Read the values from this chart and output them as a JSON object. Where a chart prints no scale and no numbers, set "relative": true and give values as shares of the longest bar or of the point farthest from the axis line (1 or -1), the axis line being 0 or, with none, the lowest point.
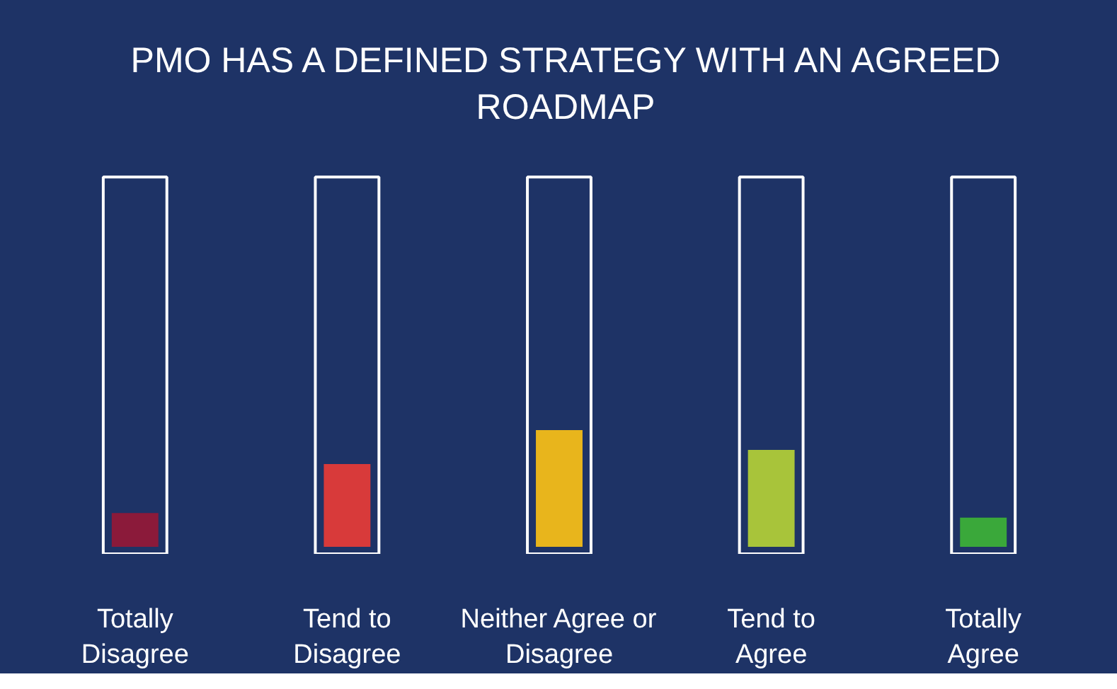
{
  "chart_data": {
    "type": "bar",
    "title": "PMO HAS A DEFINED STRATEGY WITH AN AGREED ROADMAP",
    "categories": [
      "Totally Disagree",
      "Tend to Disagree",
      "Neither Agree or Disagree",
      "Tend to Agree",
      "Totally Agree"
    ],
    "values": [
      0.29,
      0.71,
      1,
      0.83,
      0.25
    ],
    "colors": [
      "#8b1a3a",
      "#d83a3a",
      "#e8b51c",
      "#a8c43a",
      "#3aa83a"
    ],
    "relative": true,
    "grid": false
  }
}
